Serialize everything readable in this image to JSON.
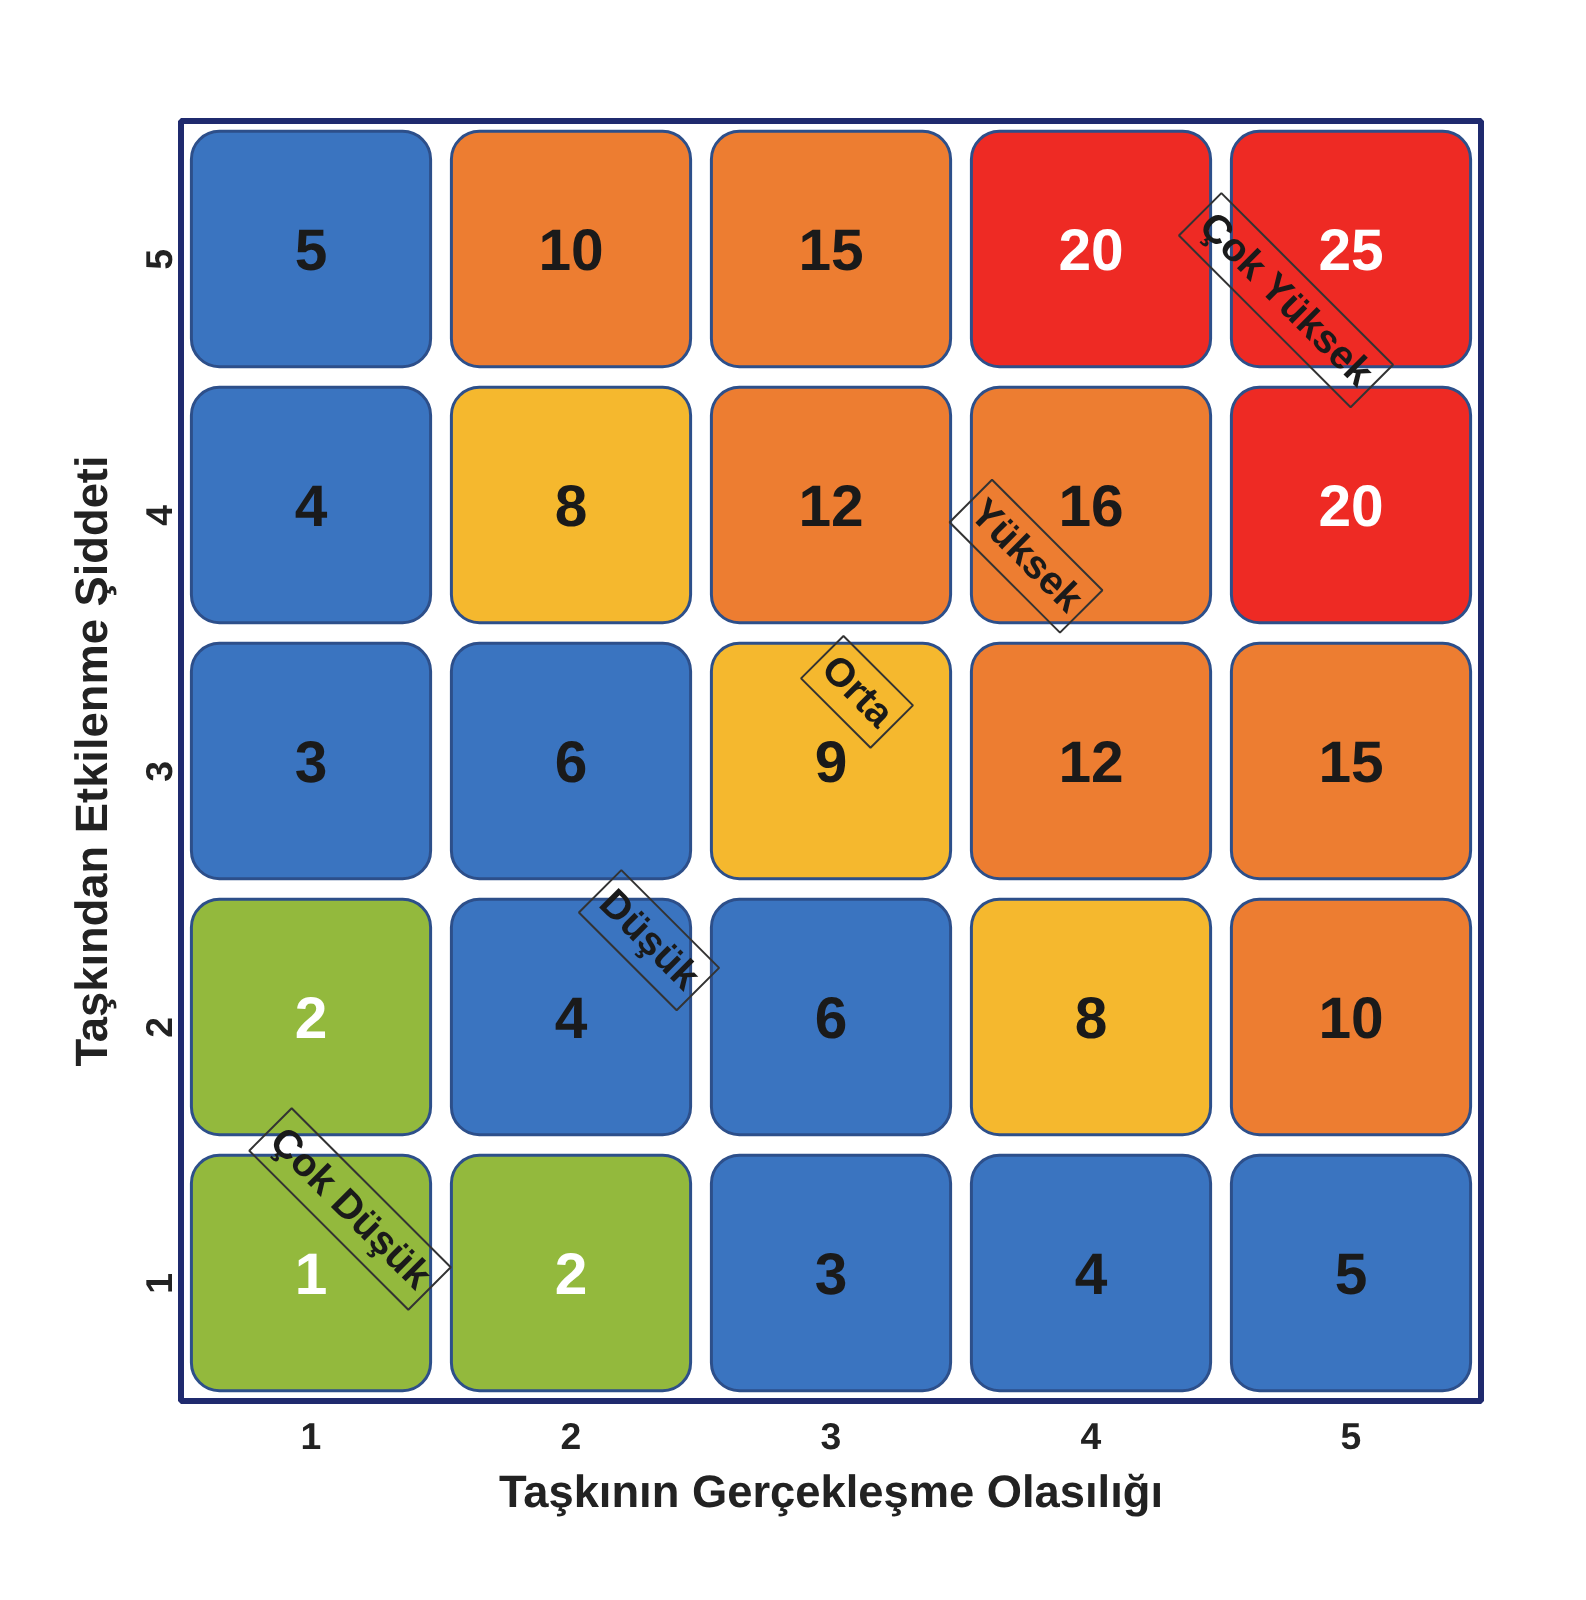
{
  "chart_data": {
    "type": "heatmap",
    "xlabel": "Taşkının Gerçekleşme Olasılığı",
    "ylabel": "Taşkından Etkilenme Şiddeti",
    "categories": [
      "1",
      "2",
      "3",
      "4",
      "5"
    ],
    "y_categories": [
      "5",
      "4",
      "3",
      "2",
      "1"
    ],
    "cells": [
      [
        5,
        10,
        15,
        20,
        25
      ],
      [
        4,
        8,
        12,
        16,
        20
      ],
      [
        3,
        6,
        9,
        12,
        15
      ],
      [
        2,
        4,
        6,
        8,
        10
      ],
      [
        1,
        2,
        3,
        4,
        5
      ]
    ],
    "colors": [
      [
        "#3a74c0",
        "#ed7d31",
        "#ed7d31",
        "#ee2a24",
        "#ee2a24"
      ],
      [
        "#3a74c0",
        "#f5b82e",
        "#ed7d31",
        "#ed7d31",
        "#ee2a24"
      ],
      [
        "#3a74c0",
        "#3a74c0",
        "#f5b82e",
        "#ed7d31",
        "#ed7d31"
      ],
      [
        "#93b93d",
        "#3a74c0",
        "#3a74c0",
        "#f5b82e",
        "#ed7d31"
      ],
      [
        "#93b93d",
        "#93b93d",
        "#3a74c0",
        "#3a74c0",
        "#3a74c0"
      ]
    ],
    "data_labels": true,
    "annotations": [
      "Çok Düşük",
      "Düşük",
      "Orta",
      "Yüksek",
      "Çok Yüksek"
    ]
  }
}
